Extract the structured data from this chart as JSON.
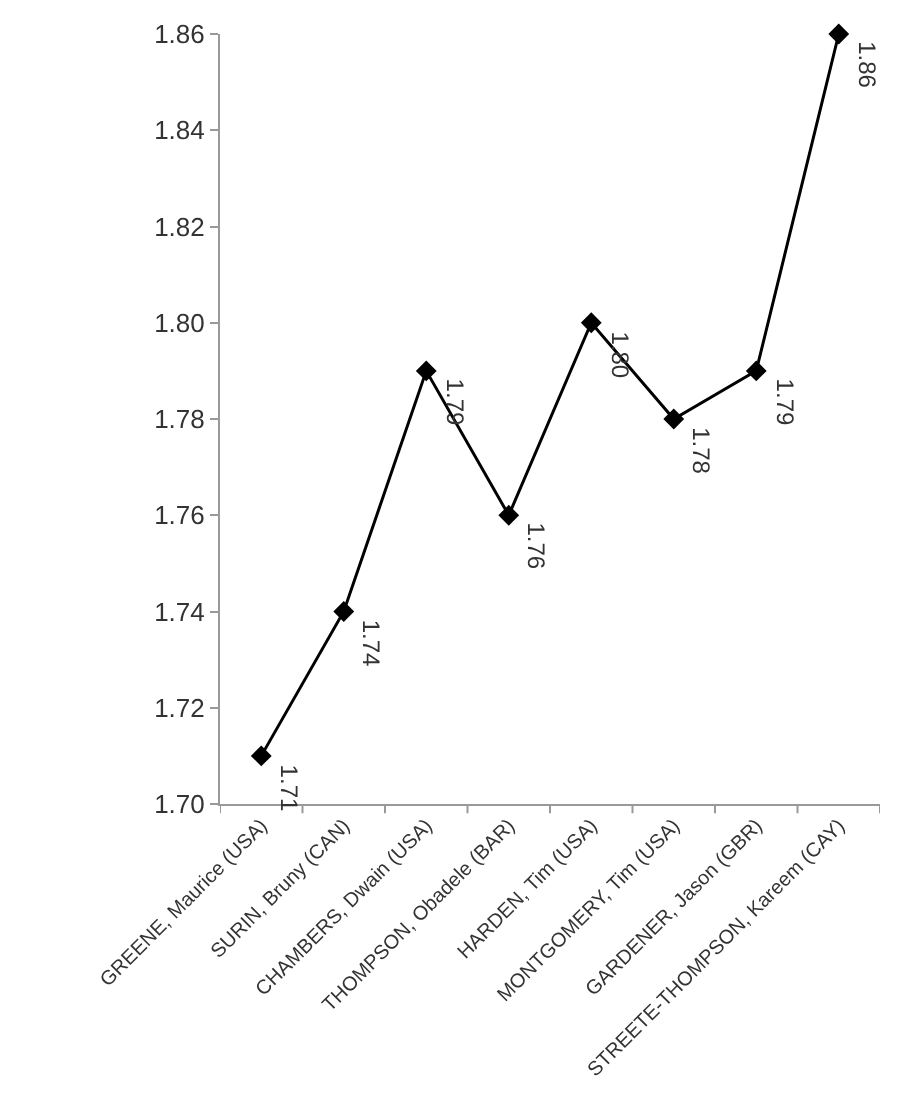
{
  "chart_data": {
    "type": "line",
    "categories": [
      "GREENE, Maurice (USA)",
      "SURIN, Bruny (CAN)",
      "CHAMBERS, Dwain (USA)",
      "THOMPSON, Obadele (BAR)",
      "HARDEN, Tim (USA)",
      "MONTGOMERY, Tim (USA)",
      "GARDENER, Jason (GBR)",
      "STREETE-THOMPSON, Kareem (CAY)"
    ],
    "series": [
      {
        "color": "#000000",
        "values": [
          1.71,
          1.74,
          1.79,
          1.76,
          1.8,
          1.78,
          1.79,
          1.86
        ]
      }
    ],
    "ylim": [
      1.7,
      1.86
    ],
    "yticks": [
      {
        "value": 1.7,
        "label": "1.70"
      },
      {
        "value": 1.72,
        "label": "1.72"
      },
      {
        "value": 1.74,
        "label": "1.74"
      },
      {
        "value": 1.76,
        "label": "1.76"
      },
      {
        "value": 1.78,
        "label": "1.78"
      },
      {
        "value": 1.8,
        "label": "1.80"
      },
      {
        "value": 1.82,
        "label": "1.82"
      },
      {
        "value": 1.84,
        "label": "1.84"
      },
      {
        "value": 1.86,
        "label": "1.86"
      }
    ],
    "value_labels": [
      "1.71",
      "1.74",
      "1.79",
      "1.76",
      "1.80",
      "1.78",
      "1.79",
      "1.86"
    ],
    "grid": false,
    "marker": "diamond",
    "line_style": "solid"
  }
}
